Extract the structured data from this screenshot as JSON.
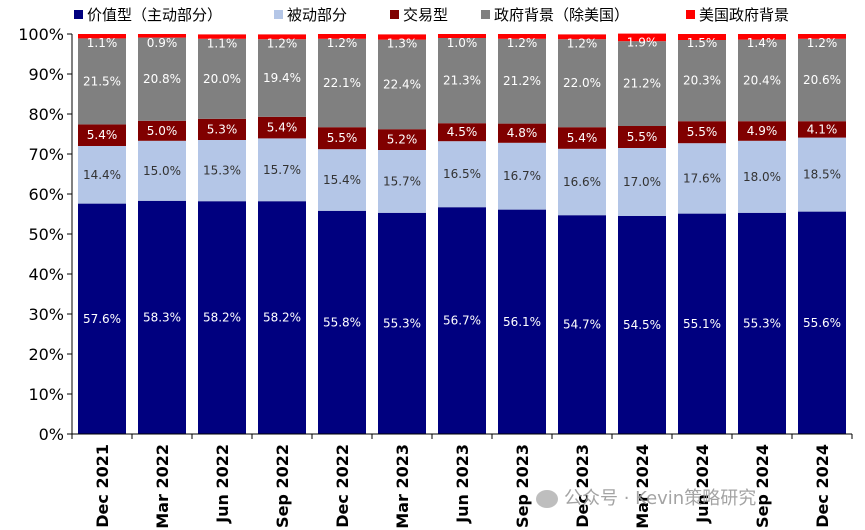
{
  "chart_data": {
    "type": "bar",
    "stacked": true,
    "categories": [
      "Dec 2021",
      "Mar 2022",
      "Jun 2022",
      "Sep 2022",
      "Dec 2022",
      "Mar 2023",
      "Jun 2023",
      "Sep 2023",
      "Dec 2023",
      "Mar 2024",
      "Jun 2024",
      "Sep 2024",
      "Dec 2024"
    ],
    "series": [
      {
        "name": "价值型（主动部分）",
        "color": "#00007f",
        "values": [
          57.6,
          58.3,
          58.2,
          58.2,
          55.8,
          55.3,
          56.7,
          56.1,
          54.7,
          54.5,
          55.1,
          55.3,
          55.6
        ]
      },
      {
        "name": "被动部分",
        "color": "#b4c6e7",
        "values": [
          14.4,
          15.0,
          15.3,
          15.7,
          15.4,
          15.7,
          16.5,
          16.7,
          16.6,
          17.0,
          17.6,
          18.0,
          18.5
        ]
      },
      {
        "name": "交易型",
        "color": "#800000",
        "values": [
          5.4,
          5.0,
          5.3,
          5.4,
          5.5,
          5.2,
          4.5,
          4.8,
          5.4,
          5.5,
          5.5,
          4.9,
          4.1
        ]
      },
      {
        "name": "政府背景（除美国）",
        "color": "#808080",
        "values": [
          21.5,
          20.8,
          20.0,
          19.4,
          22.1,
          22.4,
          21.3,
          21.2,
          22.0,
          21.2,
          20.3,
          20.4,
          20.6
        ]
      },
      {
        "name": "美国政府背景",
        "color": "#ff0000",
        "values": [
          1.1,
          0.9,
          1.1,
          1.2,
          1.2,
          1.3,
          1.0,
          1.2,
          1.2,
          1.9,
          1.5,
          1.4,
          1.2
        ]
      }
    ],
    "value_labels": [
      [
        "57.6%",
        "58.3%",
        "58.2%",
        "58.2%",
        "55.8%",
        "55.3%",
        "56.7%",
        "56.1%",
        "54.7%",
        "54.5%",
        "55.1%",
        "55.3%",
        "55.6%"
      ],
      [
        "14.4%",
        "15.0%",
        "15.3%",
        "15.7%",
        "15.4%",
        "15.7%",
        "16.5%",
        "16.7%",
        "16.6%",
        "17.0%",
        "17.6%",
        "18.0%",
        "18.5%"
      ],
      [
        "5.4%",
        "5.0%",
        "5.3%",
        "5.4%",
        "5.5%",
        "5.2%",
        "4.5%",
        "4.8%",
        "5.4%",
        "5.5%",
        "5.5%",
        "4.9%",
        "4.1%"
      ],
      [
        "21.5%",
        "20.8%",
        "20.0%",
        "19.4%",
        "22.1%",
        "22.4%",
        "21.3%",
        "21.2%",
        "22.0%",
        "21.2%",
        "20.3%",
        "20.4%",
        "20.6%"
      ],
      [
        "1.1%",
        "0.9%",
        "1.1%",
        "1.2%",
        "1.2%",
        "1.3%",
        "1.0%",
        "1.2%",
        "1.2%",
        "1.9%",
        "1.5%",
        "1.4%",
        "1.2%"
      ]
    ],
    "yticks": [
      "0%",
      "10%",
      "20%",
      "30%",
      "40%",
      "50%",
      "60%",
      "70%",
      "80%",
      "90%",
      "100%"
    ],
    "ylim": [
      0,
      100
    ],
    "legend_position": "top",
    "grid": false
  },
  "watermark": "公众号 · Kevin策略研究"
}
